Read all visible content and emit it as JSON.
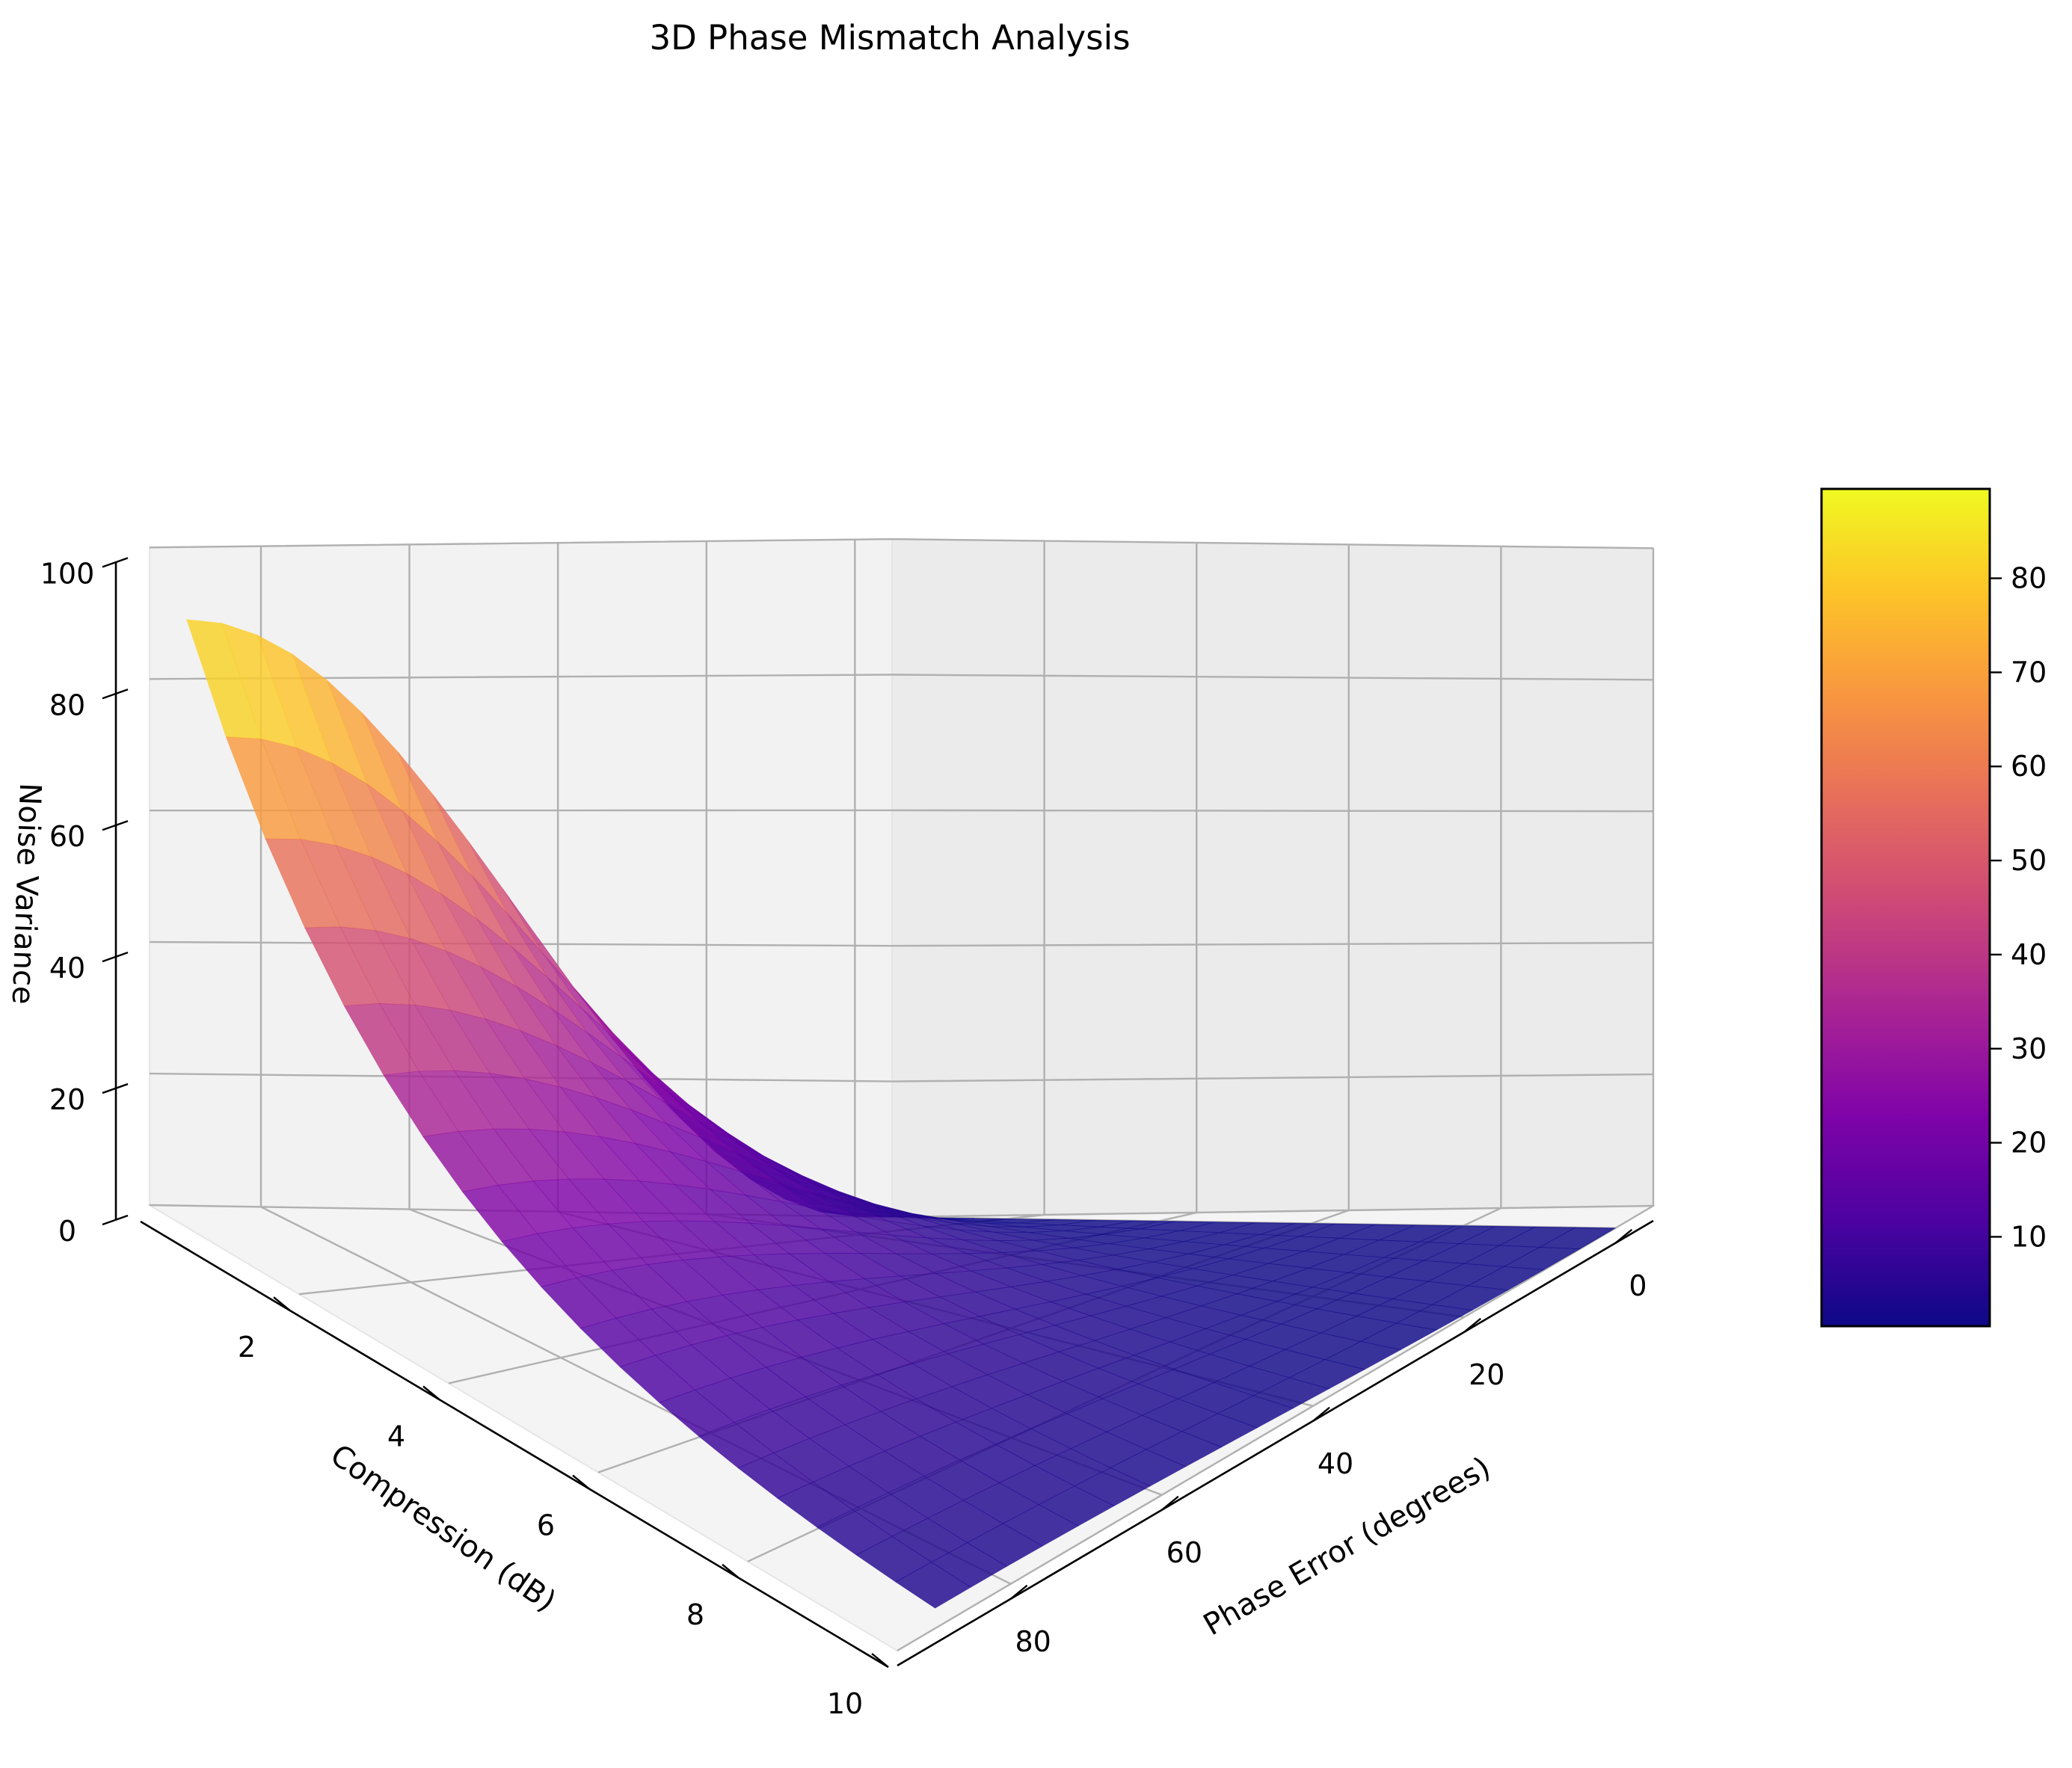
{
  "chart_data": {
    "type": "surface3d",
    "title": "3D Phase Mismatch Analysis",
    "xlabel": "Phase Error (degrees)",
    "ylabel": "Compression (dB)",
    "zlabel": "Noise Variance",
    "x_ticks": [
      "0",
      "20",
      "40",
      "60",
      "80"
    ],
    "y_ticks": [
      "2",
      "4",
      "6",
      "8",
      "10"
    ],
    "z_ticks": [
      "0",
      "20",
      "40",
      "60",
      "80",
      "100"
    ],
    "xlim": [
      -5,
      95
    ],
    "ylim": [
      0,
      10
    ],
    "zlim": [
      0,
      100
    ],
    "colormap": "plasma",
    "colorbar_ticks": [
      "10",
      "20",
      "30",
      "40",
      "50",
      "60",
      "70",
      "80"
    ],
    "colorbar_range": [
      0.5,
      89.5
    ],
    "grid": true,
    "surface": {
      "x_range": [
        0,
        90
      ],
      "y_range": [
        0,
        10
      ],
      "samples": 20,
      "z_model": "z ≈ 89 · sin(x)² · exp(−y / 3)",
      "peak": {
        "x": 90,
        "y": 0,
        "z": 89
      },
      "min": {
        "z": 0
      }
    }
  }
}
